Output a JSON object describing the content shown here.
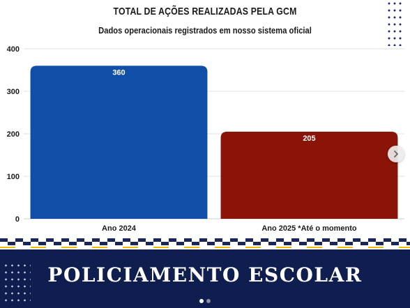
{
  "header": {
    "title": "TOTAL DE AÇÕES REALIZADAS PELA GCM",
    "subtitle": "Dados operacionais registrados em nosso sistema oficial"
  },
  "chart_data": {
    "type": "bar",
    "categories": [
      "Ano 2024",
      "Ano 2025 *Até o momento"
    ],
    "values": [
      360,
      205
    ],
    "data_labels": [
      "360",
      "205"
    ],
    "colors": [
      "#0f4fa8",
      "#8a1408"
    ],
    "yticks": [
      "0",
      "100",
      "200",
      "300",
      "400"
    ],
    "ylim": [
      0,
      400
    ],
    "grid": true,
    "legend": "none"
  },
  "banner": {
    "title": "POLICIAMENTO ESCOLAR",
    "background": "#101d4f"
  },
  "controls": {
    "next_icon": "chevron-right-icon",
    "pager_active": 0,
    "pager_count": 2
  }
}
